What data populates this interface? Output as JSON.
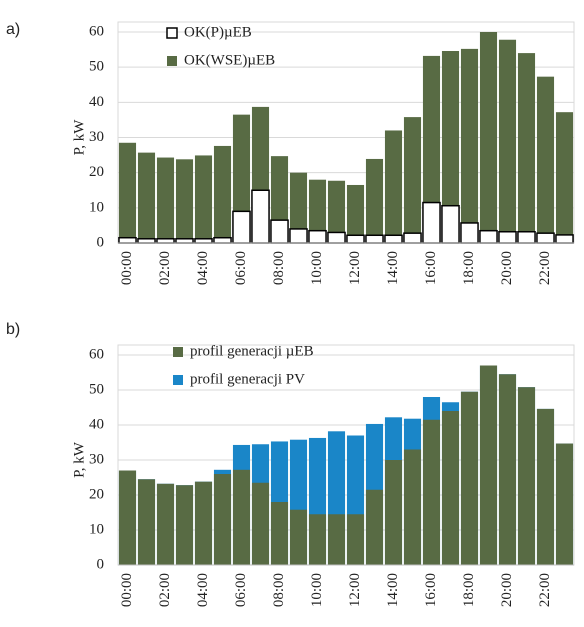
{
  "chart_data": [
    {
      "type": "bar",
      "overlay": true,
      "panel_label": "a)",
      "ylabel": "P, kW",
      "categories": [
        "00:00",
        null,
        "02:00",
        null,
        "04:00",
        null,
        "06:00",
        null,
        "08:00",
        null,
        "10:00",
        null,
        "12:00",
        null,
        "14:00",
        null,
        "16:00",
        null,
        "18:00",
        null,
        "20:00",
        null,
        "22:00",
        null
      ],
      "series": [
        {
          "name": "OK(P)µEB",
          "color": "#ffffff",
          "edgecolor": "#000000",
          "values": [
            1.5,
            1.2,
            1.2,
            1.2,
            1.2,
            1.5,
            9,
            15,
            6.5,
            4,
            3.5,
            3,
            2.2,
            2.2,
            2.2,
            2.8,
            11.5,
            10.6,
            5.7,
            3.5,
            3.2,
            3.2,
            2.8,
            2.3
          ]
        },
        {
          "name": "OK(WSE)µEB",
          "color": "#586b44",
          "values": [
            28.5,
            25.7,
            24.3,
            23.8,
            24.9,
            27.6,
            36.5,
            38.7,
            24.7,
            20,
            18,
            17.7,
            16.5,
            23.9,
            32,
            35.8,
            53.2,
            54.6,
            55.2,
            60,
            57.8,
            54,
            47.3,
            37.2
          ]
        }
      ],
      "ylim": [
        0,
        60
      ],
      "yticks": [
        0,
        10,
        20,
        30,
        40,
        50,
        60
      ],
      "grid": true,
      "legend": "upper left"
    },
    {
      "type": "bar",
      "overlay": true,
      "panel_label": "b)",
      "ylabel": "P, kW",
      "categories": [
        "00:00",
        null,
        "02:00",
        null,
        "04:00",
        null,
        "06:00",
        null,
        "08:00",
        null,
        "10:00",
        null,
        "12:00",
        null,
        "14:00",
        null,
        "16:00",
        null,
        "18:00",
        null,
        "20:00",
        null,
        "22:00",
        null
      ],
      "series": [
        {
          "name": "profil generacji µEB",
          "color": "#586b44",
          "values": [
            27,
            24.5,
            23.2,
            22.8,
            23.8,
            26,
            27.2,
            23.5,
            18,
            15.8,
            14.5,
            14.5,
            14.5,
            21.5,
            30,
            33,
            41.5,
            44,
            49.5,
            57,
            54.5,
            50.8,
            44.6,
            34.7
          ]
        },
        {
          "name": "profil generacji PV",
          "color": "#1a86c8",
          "values": [
            27,
            24.5,
            23.2,
            22.8,
            23.8,
            27.2,
            34.3,
            34.5,
            35.3,
            35.8,
            36.3,
            38.2,
            37,
            40.3,
            42.2,
            41.8,
            48,
            46.5,
            49.5,
            57,
            54.5,
            50.8,
            44.6,
            34.7
          ]
        }
      ],
      "ylim": [
        0,
        60
      ],
      "yticks": [
        0,
        10,
        20,
        30,
        40,
        50,
        60
      ],
      "grid": true,
      "legend": "upper left"
    }
  ]
}
